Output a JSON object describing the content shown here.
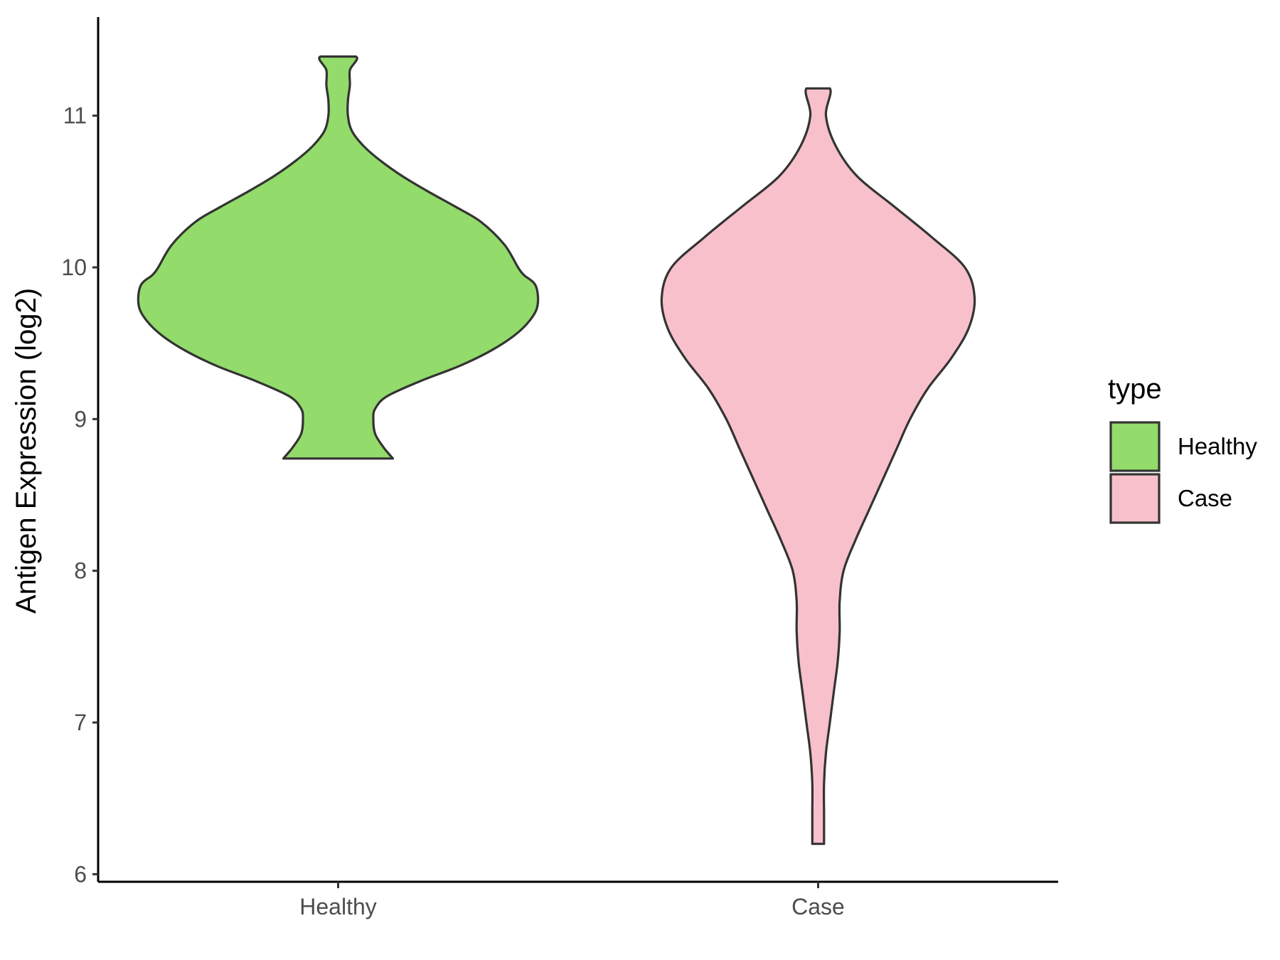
{
  "chart_data": {
    "type": "violin",
    "title": "",
    "xlabel": "",
    "ylabel": "Antigen Expression (log2)",
    "ylim": [
      5.95,
      11.65
    ],
    "yticks": [
      6,
      7,
      8,
      9,
      10,
      11
    ],
    "grid": false,
    "legend": {
      "title": "type",
      "position": "right",
      "entries": [
        "Healthy",
        "Case"
      ]
    },
    "categories": [
      "Healthy",
      "Case"
    ],
    "series": [
      {
        "name": "Healthy",
        "color": "#93DB6A",
        "density_profile": [
          [
            8.74,
            0.28
          ],
          [
            8.8,
            0.24
          ],
          [
            8.9,
            0.19
          ],
          [
            9.0,
            0.18
          ],
          [
            9.07,
            0.19
          ],
          [
            9.15,
            0.25
          ],
          [
            9.25,
            0.42
          ],
          [
            9.35,
            0.62
          ],
          [
            9.45,
            0.78
          ],
          [
            9.55,
            0.9
          ],
          [
            9.65,
            0.98
          ],
          [
            9.75,
            1.02
          ],
          [
            9.88,
            1.01
          ],
          [
            9.95,
            0.95
          ],
          [
            10.0,
            0.92
          ],
          [
            10.15,
            0.85
          ],
          [
            10.3,
            0.73
          ],
          [
            10.4,
            0.6
          ],
          [
            10.5,
            0.46
          ],
          [
            10.6,
            0.33
          ],
          [
            10.7,
            0.22
          ],
          [
            10.8,
            0.13
          ],
          [
            10.9,
            0.07
          ],
          [
            11.0,
            0.05
          ],
          [
            11.1,
            0.05
          ],
          [
            11.2,
            0.06
          ],
          [
            11.3,
            0.06
          ],
          [
            11.39,
            0.09
          ]
        ]
      },
      {
        "name": "Case",
        "color": "#F7C0CB",
        "density_profile": [
          [
            6.2,
            0.03
          ],
          [
            6.4,
            0.03
          ],
          [
            6.6,
            0.03
          ],
          [
            6.8,
            0.04
          ],
          [
            7.0,
            0.06
          ],
          [
            7.2,
            0.08
          ],
          [
            7.4,
            0.1
          ],
          [
            7.6,
            0.11
          ],
          [
            7.8,
            0.11
          ],
          [
            8.0,
            0.13
          ],
          [
            8.2,
            0.19
          ],
          [
            8.4,
            0.26
          ],
          [
            8.6,
            0.33
          ],
          [
            8.8,
            0.4
          ],
          [
            9.0,
            0.47
          ],
          [
            9.2,
            0.56
          ],
          [
            9.4,
            0.68
          ],
          [
            9.6,
            0.77
          ],
          [
            9.8,
            0.8
          ],
          [
            10.0,
            0.75
          ],
          [
            10.2,
            0.58
          ],
          [
            10.4,
            0.39
          ],
          [
            10.6,
            0.2
          ],
          [
            10.8,
            0.09
          ],
          [
            11.0,
            0.04
          ],
          [
            11.18,
            0.06
          ]
        ]
      }
    ]
  }
}
